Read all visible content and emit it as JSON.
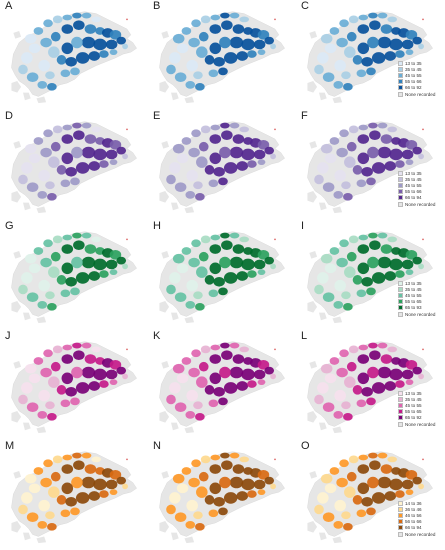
{
  "panels": [
    {
      "letter": "A",
      "scheme": 0
    },
    {
      "letter": "B",
      "scheme": 0
    },
    {
      "letter": "C",
      "scheme": 0,
      "legend": true
    },
    {
      "letter": "D",
      "scheme": 1
    },
    {
      "letter": "E",
      "scheme": 1
    },
    {
      "letter": "F",
      "scheme": 1,
      "legend": true
    },
    {
      "letter": "G",
      "scheme": 2
    },
    {
      "letter": "H",
      "scheme": 2
    },
    {
      "letter": "I",
      "scheme": 2,
      "legend": true
    },
    {
      "letter": "J",
      "scheme": 3
    },
    {
      "letter": "K",
      "scheme": 3
    },
    {
      "letter": "L",
      "scheme": 3,
      "legend": true
    },
    {
      "letter": "M",
      "scheme": 4
    },
    {
      "letter": "N",
      "scheme": 4
    },
    {
      "letter": "O",
      "scheme": 4,
      "legend": true
    }
  ],
  "schemes": [
    {
      "colors": [
        "#dbe9f6",
        "#a9cfe5",
        "#6aaed6",
        "#3182bd",
        "#08519c"
      ],
      "labels": [
        "13 to 35",
        "35 to 45",
        "45 to 55",
        "55 to 66",
        "66 to 92"
      ]
    },
    {
      "colors": [
        "#e5e2f0",
        "#c3bfdd",
        "#9e9ac8",
        "#7a5eab",
        "#54278f"
      ],
      "labels": [
        "13 to 35",
        "35 to 45",
        "45 to 55",
        "55 to 66",
        "66 to 94"
      ]
    },
    {
      "colors": [
        "#dff2ea",
        "#a8dcc3",
        "#66c2a4",
        "#2ca25f",
        "#006d2c"
      ],
      "labels": [
        "13 to 35",
        "35 to 45",
        "45 to 55",
        "55 to 65",
        "65 to 93"
      ]
    },
    {
      "colors": [
        "#f6e1ee",
        "#e7b2d3",
        "#df65b0",
        "#c51b8a",
        "#7a0177"
      ],
      "labels": [
        "13 to 35",
        "35 to 45",
        "45 to 55",
        "55 to 65",
        "65 to 92"
      ]
    },
    {
      "colors": [
        "#fff3d0",
        "#fed98e",
        "#fe9929",
        "#d96a12",
        "#8c4a0c"
      ],
      "labels": [
        "14 to 36",
        "36 to 46",
        "46 to 56",
        "56 to 66",
        "66 to 94"
      ]
    }
  ],
  "none_label": "None recorded",
  "none_color": "#e6e6e6"
}
